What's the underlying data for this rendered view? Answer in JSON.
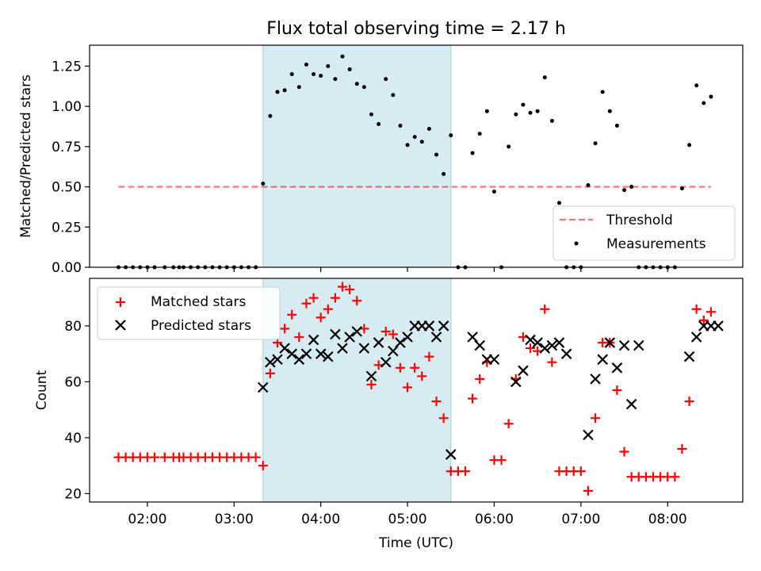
{
  "title": "Flux total observing time = 2.17 h",
  "colors": {
    "shade": "#add8e6",
    "threshold": "#ff0000",
    "measurement": "#000000",
    "matched": "#ff0000",
    "predicted": "#000000"
  },
  "chart_data": [
    {
      "type": "scatter",
      "ylabel": "Matched/Predicted stars",
      "ylim": [
        0,
        1.38
      ],
      "yticks": [
        "0.00",
        "0.25",
        "0.50",
        "0.75",
        "1.00",
        "1.25"
      ],
      "ytick_values": [
        0,
        0.25,
        0.5,
        0.75,
        1.0,
        1.25
      ],
      "legend_position": "lower-right",
      "legend": {
        "threshold": "Threshold",
        "measurements": "Measurements"
      },
      "threshold": {
        "value": 0.5,
        "x_start": "01:40",
        "x_end": "08:30"
      },
      "shaded_span": {
        "start": "03:20",
        "end": "05:30"
      },
      "series": [
        {
          "name": "Measurements",
          "x": [
            "01:40",
            "01:45",
            "01:50",
            "01:55",
            "02:00",
            "02:05",
            "02:12",
            "02:18",
            "02:22",
            "02:25",
            "02:30",
            "02:35",
            "02:40",
            "02:45",
            "02:50",
            "02:55",
            "03:00",
            "03:05",
            "03:10",
            "03:15",
            "03:20",
            "03:25",
            "03:30",
            "03:35",
            "03:40",
            "03:45",
            "03:50",
            "03:55",
            "04:00",
            "04:05",
            "04:10",
            "04:15",
            "04:20",
            "04:25",
            "04:30",
            "04:35",
            "04:40",
            "04:45",
            "04:50",
            "04:55",
            "05:00",
            "05:05",
            "05:10",
            "05:15",
            "05:20",
            "05:25",
            "05:30",
            "05:35",
            "05:40",
            "05:45",
            "05:50",
            "05:55",
            "06:00",
            "06:05",
            "06:10",
            "06:15",
            "06:20",
            "06:25",
            "06:30",
            "06:35",
            "06:40",
            "06:45",
            "06:50",
            "06:55",
            "07:00",
            "07:05",
            "07:10",
            "07:15",
            "07:20",
            "07:25",
            "07:30",
            "07:35",
            "07:40",
            "07:45",
            "07:50",
            "07:55",
            "08:00",
            "08:05",
            "08:10",
            "08:15",
            "08:20",
            "08:25",
            "08:30"
          ],
          "y": [
            0,
            0,
            0,
            0,
            0,
            0,
            0,
            0,
            0,
            0,
            0,
            0,
            0,
            0,
            0,
            0,
            0,
            0,
            0,
            0,
            0.52,
            0.94,
            1.09,
            1.1,
            1.2,
            1.12,
            1.26,
            1.2,
            1.19,
            1.25,
            1.17,
            1.31,
            1.23,
            1.14,
            1.12,
            0.95,
            0.89,
            1.17,
            1.07,
            0.88,
            0.76,
            0.81,
            0.78,
            0.86,
            0.7,
            0.58,
            0.82,
            0,
            0,
            0.71,
            0.83,
            0.97,
            0.47,
            0,
            0.75,
            0.95,
            1.01,
            0.96,
            0.97,
            1.18,
            0.91,
            0.4,
            0,
            0,
            0,
            0.51,
            0.77,
            1.09,
            0.97,
            0.88,
            0.48,
            0.5,
            0,
            0,
            0,
            0,
            0,
            0,
            0.49,
            0.76,
            1.13,
            1.02,
            1.06
          ]
        }
      ]
    },
    {
      "type": "scatter",
      "xlabel": "Time (UTC)",
      "ylabel": "Count",
      "ylim": [
        17,
        97
      ],
      "yticks": [
        "20",
        "40",
        "60",
        "80"
      ],
      "ytick_values": [
        20,
        40,
        60,
        80
      ],
      "xticks": [
        "02:00",
        "03:00",
        "04:00",
        "05:00",
        "06:00",
        "07:00",
        "08:00"
      ],
      "xlim": [
        "01:20",
        "08:52"
      ],
      "legend_position": "upper-left",
      "shaded_span": {
        "start": "03:20",
        "end": "05:30"
      },
      "series": [
        {
          "name": "Matched stars",
          "marker": "plus",
          "x": [
            "01:40",
            "01:45",
            "01:50",
            "01:55",
            "02:00",
            "02:05",
            "02:12",
            "02:18",
            "02:22",
            "02:25",
            "02:30",
            "02:35",
            "02:40",
            "02:45",
            "02:50",
            "02:55",
            "03:00",
            "03:05",
            "03:10",
            "03:15",
            "03:20",
            "03:25",
            "03:30",
            "03:35",
            "03:40",
            "03:45",
            "03:50",
            "03:55",
            "04:00",
            "04:05",
            "04:10",
            "04:15",
            "04:20",
            "04:25",
            "04:30",
            "04:35",
            "04:40",
            "04:45",
            "04:50",
            "04:55",
            "05:00",
            "05:05",
            "05:10",
            "05:15",
            "05:20",
            "05:25",
            "05:30",
            "05:35",
            "05:40",
            "05:45",
            "05:50",
            "05:55",
            "06:00",
            "06:05",
            "06:10",
            "06:15",
            "06:20",
            "06:25",
            "06:30",
            "06:35",
            "06:40",
            "06:45",
            "06:50",
            "06:55",
            "07:00",
            "07:05",
            "07:10",
            "07:15",
            "07:20",
            "07:25",
            "07:30",
            "07:35",
            "07:40",
            "07:45",
            "07:50",
            "07:55",
            "08:00",
            "08:05",
            "08:10",
            "08:15",
            "08:20",
            "08:25",
            "08:30"
          ],
          "y": [
            33,
            33,
            33,
            33,
            33,
            33,
            33,
            33,
            33,
            33,
            33,
            33,
            33,
            33,
            33,
            33,
            33,
            33,
            33,
            33,
            30,
            63,
            74,
            79,
            84,
            76,
            88,
            90,
            83,
            86,
            90,
            94,
            93,
            89,
            79,
            59,
            66,
            78,
            77,
            65,
            58,
            65,
            62,
            69,
            53,
            47,
            28,
            28,
            28,
            54,
            61,
            67,
            32,
            32,
            45,
            61,
            76,
            72,
            71,
            86,
            67,
            28,
            28,
            28,
            28,
            21,
            47,
            74,
            74,
            57,
            35,
            26,
            26,
            26,
            26,
            26,
            26,
            26,
            36,
            53,
            86,
            82,
            85
          ]
        },
        {
          "name": "Predicted stars",
          "marker": "x",
          "x": [
            "03:20",
            "03:25",
            "03:30",
            "03:35",
            "03:40",
            "03:45",
            "03:50",
            "03:55",
            "04:00",
            "04:05",
            "04:10",
            "04:15",
            "04:20",
            "04:25",
            "04:30",
            "04:35",
            "04:40",
            "04:45",
            "04:50",
            "04:55",
            "05:00",
            "05:05",
            "05:10",
            "05:15",
            "05:20",
            "05:25",
            "05:30",
            "05:45",
            "05:50",
            "05:55",
            "06:00",
            "06:15",
            "06:20",
            "06:25",
            "06:30",
            "06:35",
            "06:40",
            "06:45",
            "06:50",
            "07:05",
            "07:10",
            "07:15",
            "07:20",
            "07:25",
            "07:30",
            "07:35",
            "07:40",
            "08:15",
            "08:20",
            "08:25",
            "08:30",
            "08:35"
          ],
          "y": [
            58,
            67,
            68,
            72,
            70,
            68,
            70,
            75,
            70,
            69,
            77,
            72,
            76,
            78,
            72,
            62,
            74,
            67,
            71,
            74,
            76,
            80,
            80,
            80,
            76,
            80,
            34,
            76,
            73,
            68,
            68,
            60,
            64,
            75,
            74,
            72,
            73,
            74,
            70,
            41,
            61,
            68,
            74,
            65,
            73,
            52,
            73,
            69,
            76,
            80,
            80,
            80
          ]
        }
      ]
    }
  ]
}
